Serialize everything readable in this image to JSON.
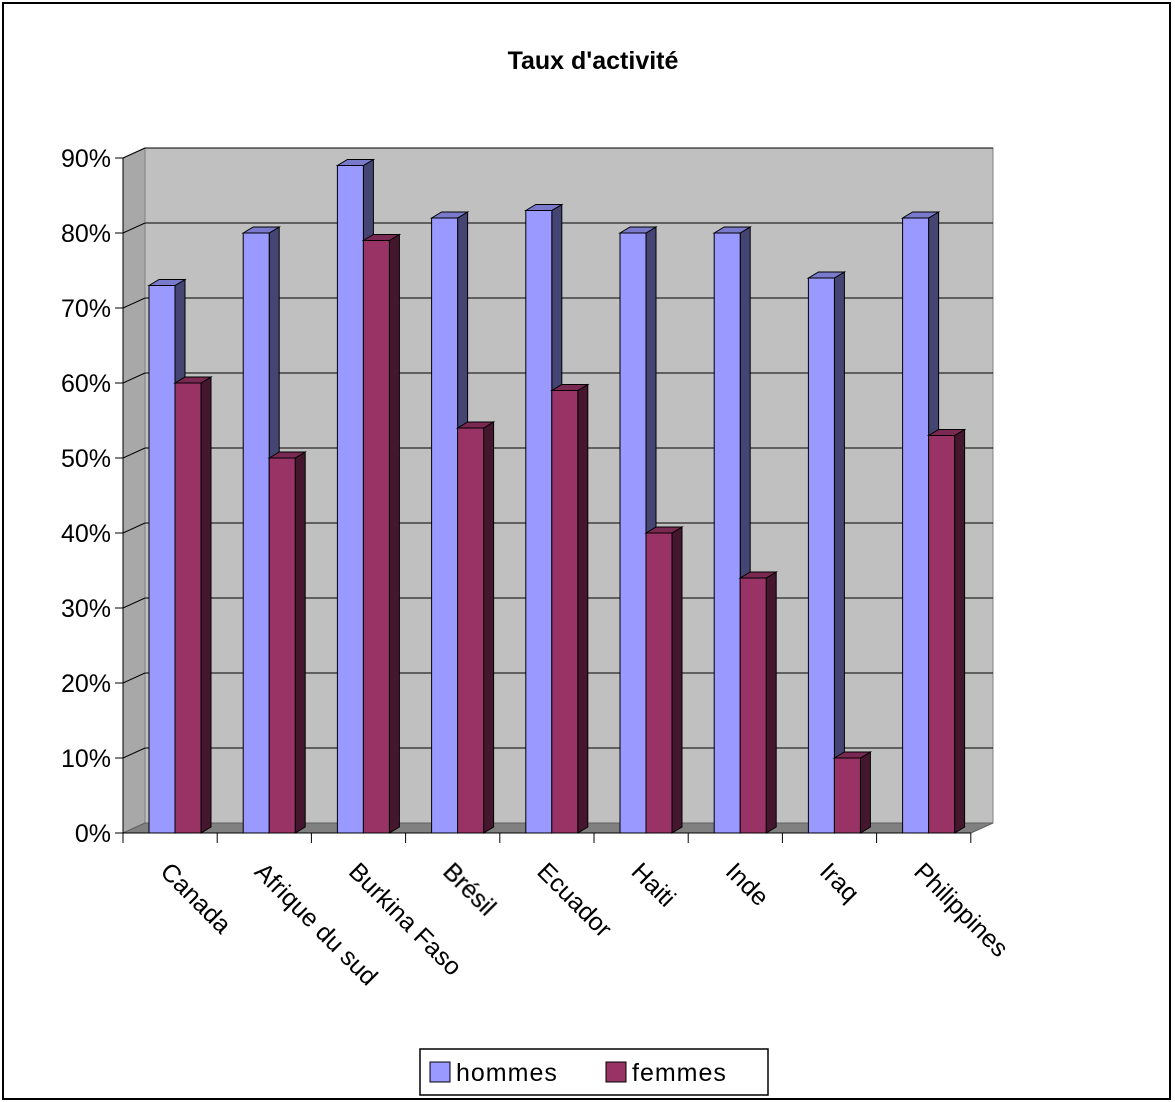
{
  "chart_data": {
    "type": "bar",
    "title": "Taux d'activité",
    "categories": [
      "Canada",
      "Afrique du sud",
      "Burkina Faso",
      "Brésil",
      "Ecuador",
      "Haiti",
      "Inde",
      "Iraq",
      "Philippines"
    ],
    "series": [
      {
        "name": "hommes",
        "color": "#9999ff",
        "values": [
          0.73,
          0.8,
          0.89,
          0.82,
          0.83,
          0.8,
          0.8,
          0.74,
          0.82
        ]
      },
      {
        "name": "femmes",
        "color": "#993366",
        "values": [
          0.6,
          0.5,
          0.79,
          0.54,
          0.59,
          0.4,
          0.34,
          0.1,
          0.53
        ]
      }
    ],
    "ylim": [
      0,
      0.9
    ],
    "yticks": [
      "0%",
      "10%",
      "20%",
      "30%",
      "40%",
      "50%",
      "60%",
      "70%",
      "80%",
      "90%"
    ],
    "grid": true,
    "legend_position": "bottom",
    "wall_color": "#c0c0c0",
    "floor_color": "#808080"
  }
}
